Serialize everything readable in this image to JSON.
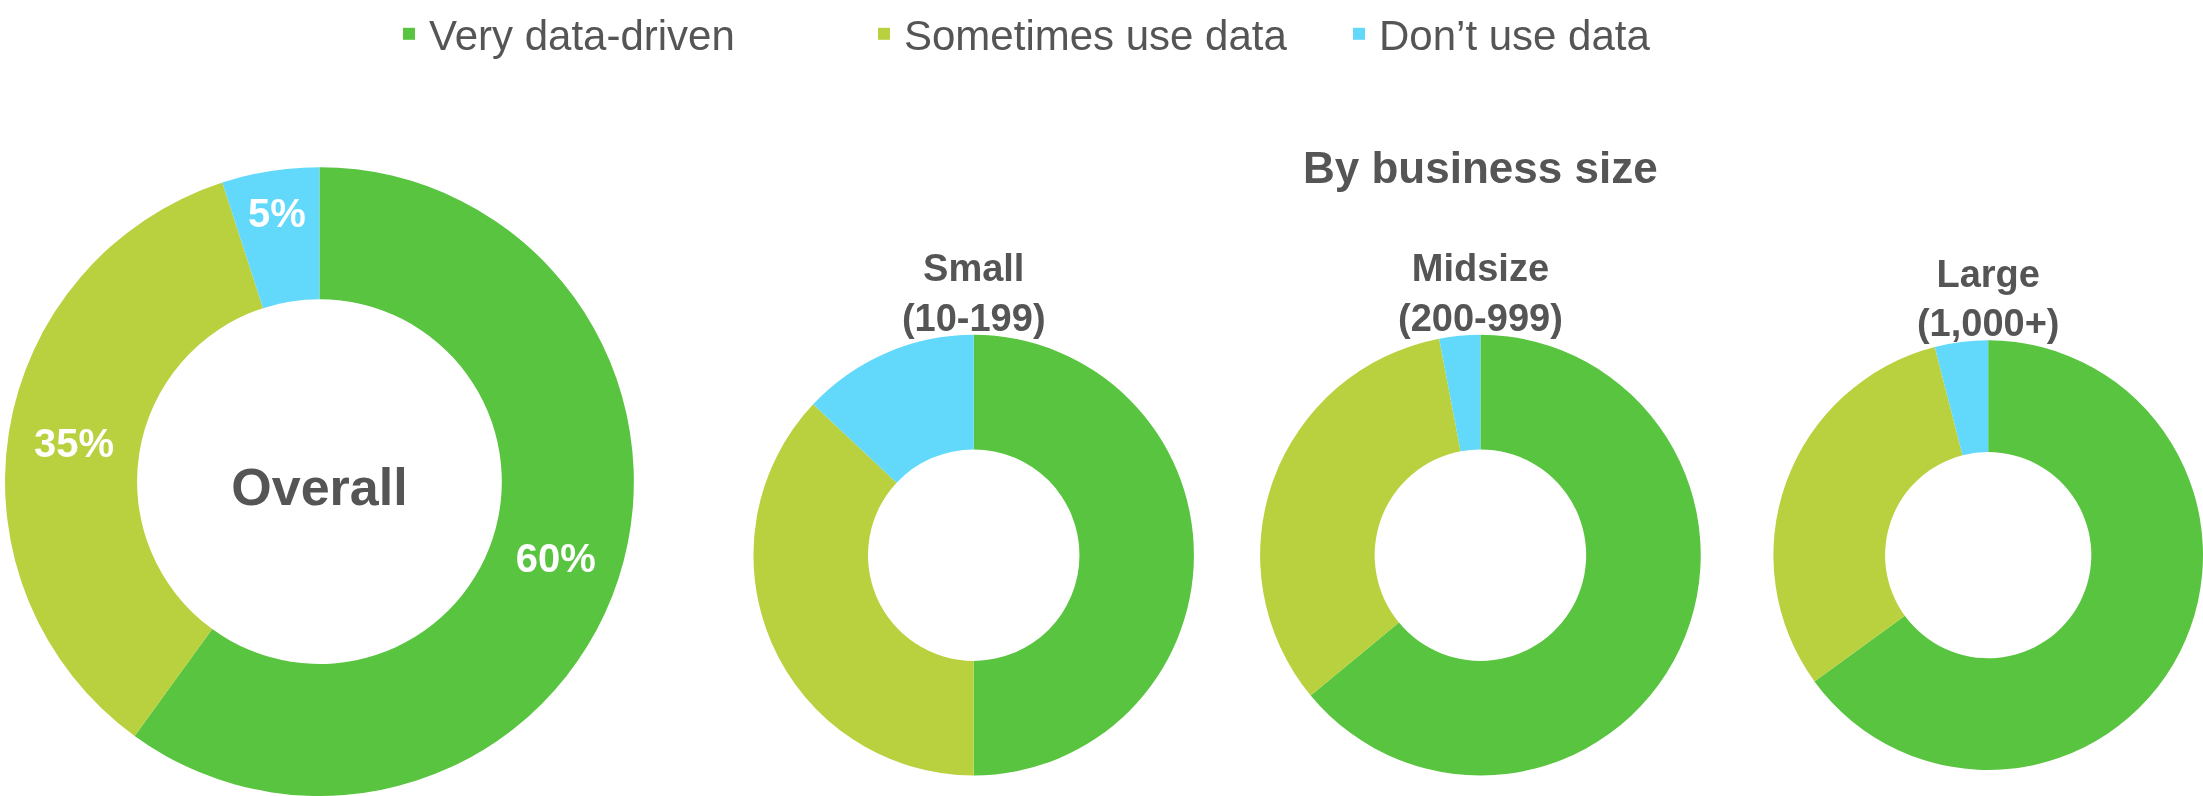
{
  "chart_data": [
    {
      "type": "donut",
      "title": "Overall",
      "categories": [
        "Very data-driven",
        "Sometimes use data",
        "Don’t use data"
      ],
      "values": [
        60,
        35,
        5
      ],
      "value_labels": [
        "60%",
        "35%",
        "5%"
      ],
      "colors": [
        "#58c43f",
        "#b9d13e",
        "#62d9fb"
      ],
      "legend": "top"
    },
    {
      "type": "donut",
      "title": "Small\n(10-199)",
      "annotations": [
        "By business size"
      ],
      "values": [
        50,
        37,
        13
      ],
      "colors": [
        "#58c43f",
        "#b9d13e",
        "#62d9fb"
      ]
    },
    {
      "type": "donut",
      "title": "Midsize\n(200-999)",
      "values": [
        64,
        33,
        3
      ],
      "colors": [
        "#58c43f",
        "#b9d13e",
        "#62d9fb"
      ]
    },
    {
      "type": "donut",
      "title": "Large\n(1,000+)",
      "values": [
        65,
        31,
        4
      ],
      "colors": [
        "#58c43f",
        "#b9d13e",
        "#62d9fb"
      ]
    }
  ]
}
